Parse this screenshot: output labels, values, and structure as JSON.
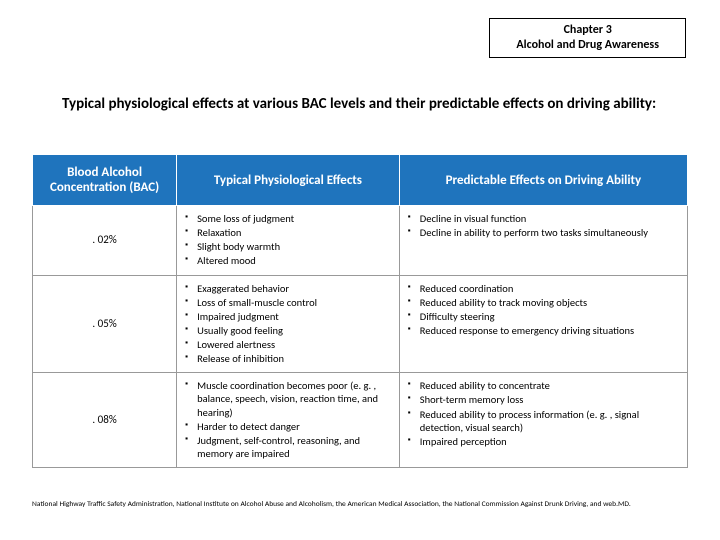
{
  "chapter": {
    "line1": "Chapter 3",
    "line2": "Alcohol and Drug Awareness"
  },
  "title": "Typical physiological effects at various BAC levels and their predictable effects on driving ability:",
  "headers": {
    "bac": "Blood Alcohol Concentration (BAC)",
    "phys": "Typical Physiological Effects",
    "drive": "Predictable Effects on Driving Ability"
  },
  "rows": [
    {
      "bac": ". 02%",
      "phys": [
        "Some loss of judgment",
        "Relaxation",
        "Slight body warmth",
        "Altered mood"
      ],
      "drive": [
        "Decline in visual function",
        "Decline in ability to perform two tasks simultaneously"
      ]
    },
    {
      "bac": ". 05%",
      "phys": [
        "Exaggerated behavior",
        "Loss of small-muscle control",
        "Impaired judgment",
        "Usually good feeling",
        "Lowered alertness",
        "Release of inhibition"
      ],
      "drive": [
        "Reduced coordination",
        "Reduced ability to track moving objects",
        "Difficulty steering",
        "Reduced response to emergency driving situations"
      ]
    },
    {
      "bac": ". 08%",
      "phys": [
        "Muscle coordination becomes poor (e. g. , balance, speech, vision, reaction time, and hearing)",
        "Harder to detect danger",
        "Judgment, self-control, reasoning, and memory are impaired"
      ],
      "drive": [
        "Reduced ability to concentrate",
        "Short-term memory loss",
        "Reduced ability to process information (e. g. , signal detection, visual search)",
        "Impaired perception"
      ]
    }
  ],
  "footnote": "National Highway Traffic Safety Administration, National Institute on Alcohol Abuse and Alcoholism, the American Medical Association, the National Commission Against Drunk Driving, and web.MD.",
  "colors": {
    "header_bg": "#1f74bd",
    "header_text": "#ffffff",
    "cell_border": "#999999",
    "bullet": "#000000"
  }
}
